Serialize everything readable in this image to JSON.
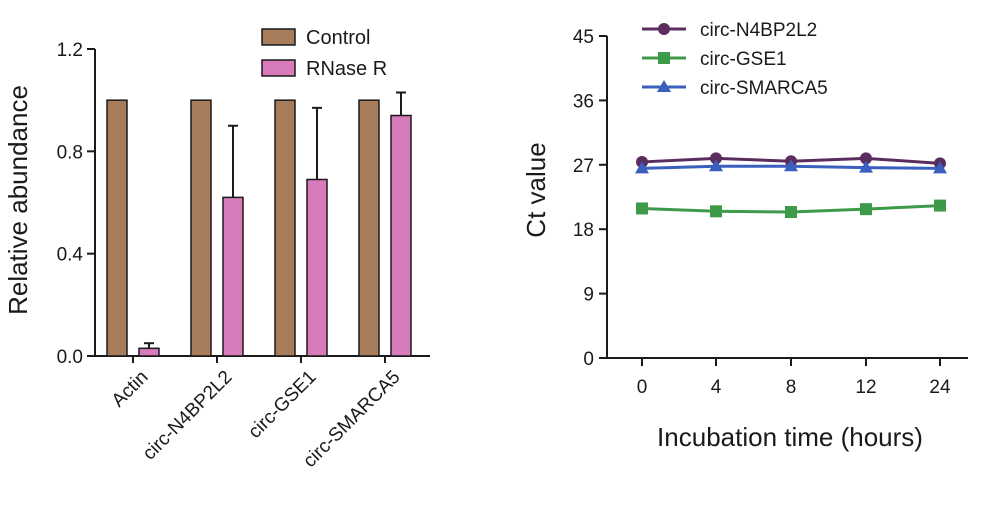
{
  "chart_data": [
    {
      "type": "bar",
      "categories": [
        "Actin",
        "circ-N4BP2L2",
        "circ-GSE1",
        "circ-SMARCA5"
      ],
      "series": [
        {
          "name": "Control",
          "color": "#a67c5b",
          "values": [
            1.0,
            1.0,
            1.0,
            1.0
          ],
          "errors": [
            0,
            0,
            0,
            0
          ]
        },
        {
          "name": "RNase R",
          "color": "#d87bbd",
          "values": [
            0.03,
            0.62,
            0.69,
            0.94
          ],
          "errors": [
            0.02,
            0.28,
            0.28,
            0.09
          ]
        }
      ],
      "xlabel": "",
      "ylabel": "Relative abundance",
      "ylim": [
        0,
        1.2
      ],
      "yticks": [
        "0.0",
        "0.4",
        "0.8",
        "1.2"
      ],
      "legend_position": "top-right",
      "grid": false
    },
    {
      "type": "line",
      "x": [
        "0",
        "4",
        "8",
        "12",
        "24"
      ],
      "series": [
        {
          "name": "circ-N4BP2L2",
          "color": "#5b2d5f",
          "marker": "circle",
          "values": [
            27.4,
            27.9,
            27.5,
            27.9,
            27.2
          ]
        },
        {
          "name": "circ-GSE1",
          "color": "#3c9a48",
          "marker": "square",
          "values": [
            20.9,
            20.5,
            20.4,
            20.8,
            21.3
          ]
        },
        {
          "name": "circ-SMARCA5",
          "color": "#3a5fbf",
          "marker": "triangle",
          "values": [
            26.5,
            26.8,
            26.8,
            26.6,
            26.5
          ]
        }
      ],
      "xlabel": "Incubation time (hours)",
      "ylabel": "Ct value",
      "ylim": [
        0,
        45
      ],
      "yticks": [
        "0",
        "9",
        "18",
        "27",
        "36",
        "45"
      ],
      "legend_position": "top",
      "grid": false
    }
  ]
}
